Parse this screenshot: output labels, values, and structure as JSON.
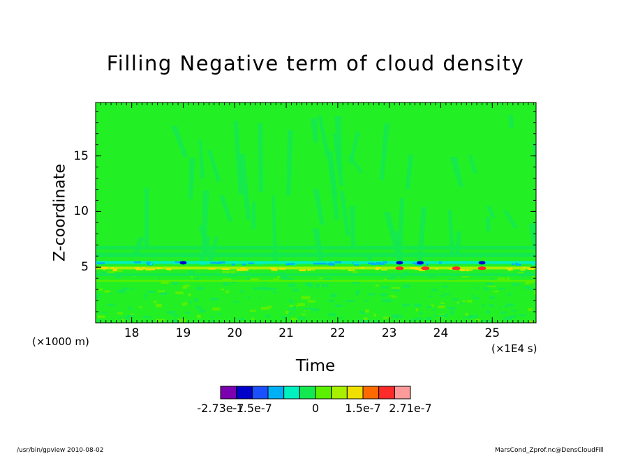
{
  "chart_data": {
    "type": "heatmap",
    "title": "Filling Negative term of cloud density",
    "xlabel": "Time",
    "ylabel": "Z-coordinate",
    "x_unit": "(×1E4 s)",
    "y_unit": "(×1000 m)",
    "xlim": [
      17.3,
      25.85
    ],
    "ylim": [
      0,
      19.8
    ],
    "x_ticks": [
      18,
      19,
      20,
      21,
      22,
      23,
      24,
      25
    ],
    "x_tick_labels": [
      "18",
      "19",
      "20",
      "21",
      "22",
      "23",
      "24",
      "25"
    ],
    "y_ticks": [
      5,
      10,
      15
    ],
    "y_tick_labels": [
      "5",
      "10",
      "15"
    ],
    "background_level_color": "#22f024",
    "colorbar": {
      "colors": [
        "#7a00b0",
        "#0000cc",
        "#1a50ff",
        "#00b0f5",
        "#00f0c0",
        "#14e850",
        "#5af000",
        "#a8f000",
        "#f0e000",
        "#ff6a00",
        "#ff2a2a",
        "#ff9a9a"
      ],
      "labels": [
        "-2.73e-7",
        "-1.5e-7",
        "0",
        "1.5e-7",
        "2.71e-7"
      ],
      "label_positions": [
        0,
        2,
        6,
        9,
        12
      ]
    },
    "features": [
      {
        "name": "cloud layer band",
        "z_range": [
          4.5,
          5.5
        ],
        "x_range": [
          17.3,
          25.85
        ]
      },
      {
        "name": "strong negative spots",
        "z": 5.4,
        "x": [
          19.0,
          23.2,
          23.6,
          24.8
        ]
      },
      {
        "name": "strong positive spots",
        "z": 4.9,
        "x": [
          23.2,
          23.7,
          24.3,
          24.8
        ]
      }
    ]
  },
  "footer": {
    "left": "/usr/bin/gpview  2010-08-02",
    "right": "MarsCond_Zprof.nc@DensCloudFill"
  }
}
